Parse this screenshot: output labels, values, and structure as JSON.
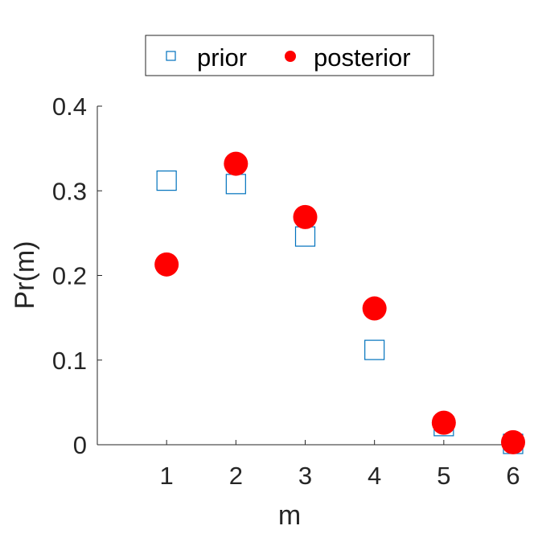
{
  "chart_data": {
    "type": "scatter",
    "xlabel": "m",
    "ylabel": "Pr(m)",
    "xlim": [
      0,
      6
    ],
    "ylim": [
      0,
      0.4
    ],
    "xticks": [
      "1",
      "2",
      "3",
      "4",
      "5",
      "6"
    ],
    "yticks": [
      "0",
      "0.1",
      "0.2",
      "0.3",
      "0.4"
    ],
    "grid": false,
    "legend_position": "top-center",
    "series": [
      {
        "name": "prior",
        "marker": "open-square",
        "color": "#0072BD",
        "x": [
          1,
          2,
          3,
          4,
          5,
          6
        ],
        "y": [
          0.312,
          0.308,
          0.246,
          0.112,
          0.022,
          0.001
        ]
      },
      {
        "name": "posterior",
        "marker": "filled-circle",
        "color": "#FF0000",
        "x": [
          1,
          2,
          3,
          4,
          5,
          6
        ],
        "y": [
          0.213,
          0.332,
          0.269,
          0.161,
          0.026,
          0.003
        ]
      }
    ]
  }
}
